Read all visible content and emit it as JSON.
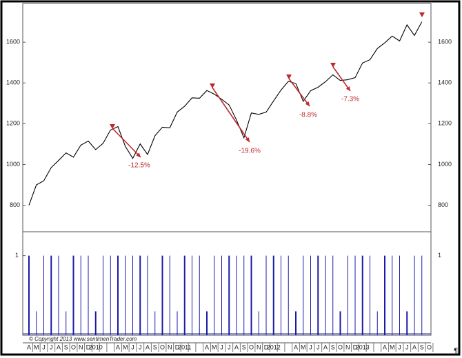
{
  "chart_data": [
    {
      "type": "line",
      "categories": [
        "A",
        "M",
        "J",
        "J",
        "A",
        "S",
        "O",
        "N",
        "D",
        "2010",
        null,
        null,
        "A",
        "M",
        "J",
        "J",
        "A",
        "S",
        "O",
        "N",
        "D",
        "2011",
        null,
        null,
        "A",
        "M",
        "J",
        "J",
        "A",
        "S",
        "O",
        "N",
        "D",
        "2012",
        null,
        null,
        "A",
        "M",
        "J",
        "J",
        "A",
        "S",
        "O",
        "N",
        "D",
        "2013",
        null,
        null,
        "A",
        "M",
        "J",
        "J",
        "A",
        "S",
        "O"
      ],
      "series": [
        {
          "name": "Price",
          "color": "#000000",
          "values": [
            800,
            900,
            920,
            985,
            1020,
            1057,
            1036,
            1095,
            1115,
            1073,
            1104,
            1169,
            1186,
            1089,
            1030,
            1101,
            1049,
            1141,
            1183,
            1180,
            1257,
            1286,
            1327,
            1325,
            1363,
            1345,
            1320,
            1292,
            1218,
            1131,
            1253,
            1246,
            1257,
            1312,
            1365,
            1408,
            1397,
            1310,
            1362,
            1379,
            1406,
            1440,
            1412,
            1416,
            1426,
            1498,
            1514,
            1569,
            1597,
            1630,
            1606,
            1685,
            1633,
            1700,
            null
          ]
        }
      ],
      "ylim": [
        670,
        1790
      ],
      "yticks": [
        800,
        1000,
        1200,
        1400,
        1600
      ],
      "annotations": [
        "-12.5%",
        "-19.6%",
        "-8.8%",
        "-7.3%"
      ],
      "annotation_color": "#c0282d",
      "grid": false
    },
    {
      "type": "spike",
      "series": [
        {
          "name": "Signal",
          "color": "#1a1aa8",
          "values": [
            1,
            0.3,
            1,
            1,
            1,
            0.3,
            1,
            1,
            1,
            0.3,
            1,
            1,
            1,
            1,
            1,
            1,
            1,
            0.3,
            1,
            1,
            0.3,
            1,
            1,
            1,
            0.3,
            1,
            1,
            1,
            1,
            1,
            1,
            0.3,
            1,
            1,
            1,
            1,
            0.3,
            1,
            1,
            1,
            1,
            1,
            0.3,
            1,
            1,
            1,
            1,
            0.3,
            1,
            1,
            1,
            0.3,
            1,
            1,
            null
          ]
        }
      ],
      "ylim": [
        0,
        1.3
      ],
      "yticks": [
        1
      ],
      "copyright": "© Copyright 2013  www.sentimenTrader.com"
    }
  ],
  "page_mark": "¶"
}
